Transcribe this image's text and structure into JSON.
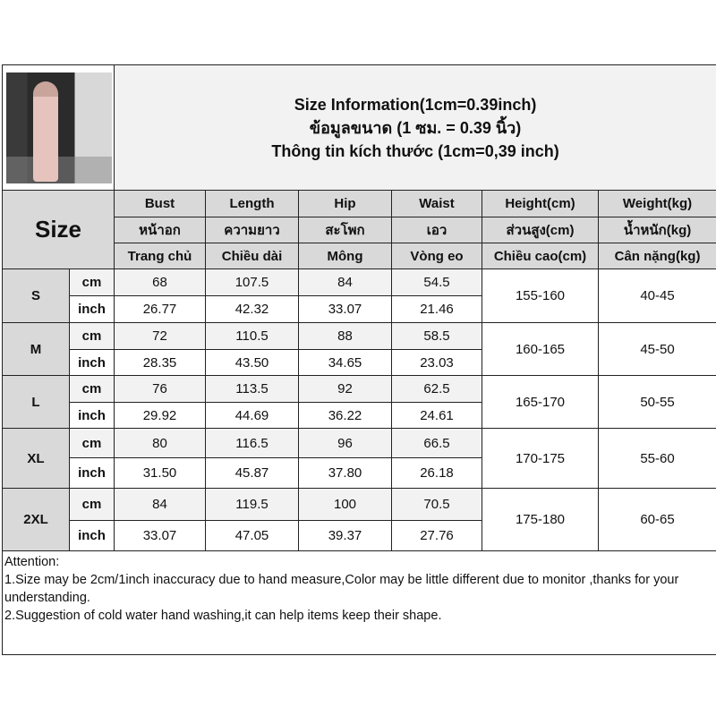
{
  "title": {
    "line1": "Size Information(1cm=0.39inch)",
    "line2": "ข้อมูลขนาด (1 ซม. = 0.39 นิ้ว)",
    "line3": "Thông tin kích thước (1cm=0,39 inch)"
  },
  "size_label": "Size",
  "headers": [
    {
      "en": "Bust",
      "th": "หน้าอก",
      "vi": "Trang chủ"
    },
    {
      "en": "Length",
      "th": "ความยาว",
      "vi": "Chiều dài"
    },
    {
      "en": "Hip",
      "th": "สะโพก",
      "vi": "Mông"
    },
    {
      "en": "Waist",
      "th": "เอว",
      "vi": "Vòng eo"
    },
    {
      "en": "Height(cm)",
      "th": "ส่วนสูง(cm)",
      "vi": "Chiều cao(cm)"
    },
    {
      "en": "Weight(kg)",
      "th": "น้ำหนัก(kg)",
      "vi": "Cân nặng(kg)"
    }
  ],
  "units": {
    "cm": "cm",
    "inch": "inch"
  },
  "rows": [
    {
      "size": "S",
      "cm": [
        "68",
        "107.5",
        "84",
        "54.5"
      ],
      "inch": [
        "26.77",
        "42.32",
        "33.07",
        "21.46"
      ],
      "height": "155-160",
      "weight": "40-45"
    },
    {
      "size": "M",
      "cm": [
        "72",
        "110.5",
        "88",
        "58.5"
      ],
      "inch": [
        "28.35",
        "43.50",
        "34.65",
        "23.03"
      ],
      "height": "160-165",
      "weight": "45-50"
    },
    {
      "size": "L",
      "cm": [
        "76",
        "113.5",
        "92",
        "62.5"
      ],
      "inch": [
        "29.92",
        "44.69",
        "36.22",
        "24.61"
      ],
      "height": "165-170",
      "weight": "50-55"
    },
    {
      "size": "XL",
      "cm": [
        "80",
        "116.5",
        "96",
        "66.5"
      ],
      "inch": [
        "31.50",
        "45.87",
        "37.80",
        "26.18"
      ],
      "height": "170-175",
      "weight": "55-60"
    },
    {
      "size": "2XL",
      "cm": [
        "84",
        "119.5",
        "100",
        "70.5"
      ],
      "inch": [
        "33.07",
        "47.05",
        "39.37",
        "27.76"
      ],
      "height": "175-180",
      "weight": "60-65"
    }
  ],
  "attention": {
    "heading": "Attention:",
    "item1": "1.Size may be 2cm/1inch inaccuracy due to hand measure,Color may be little different due to monitor ,thanks for your understanding.",
    "item2": "2.Suggestion of cold water hand washing,it can help items keep their shape."
  }
}
